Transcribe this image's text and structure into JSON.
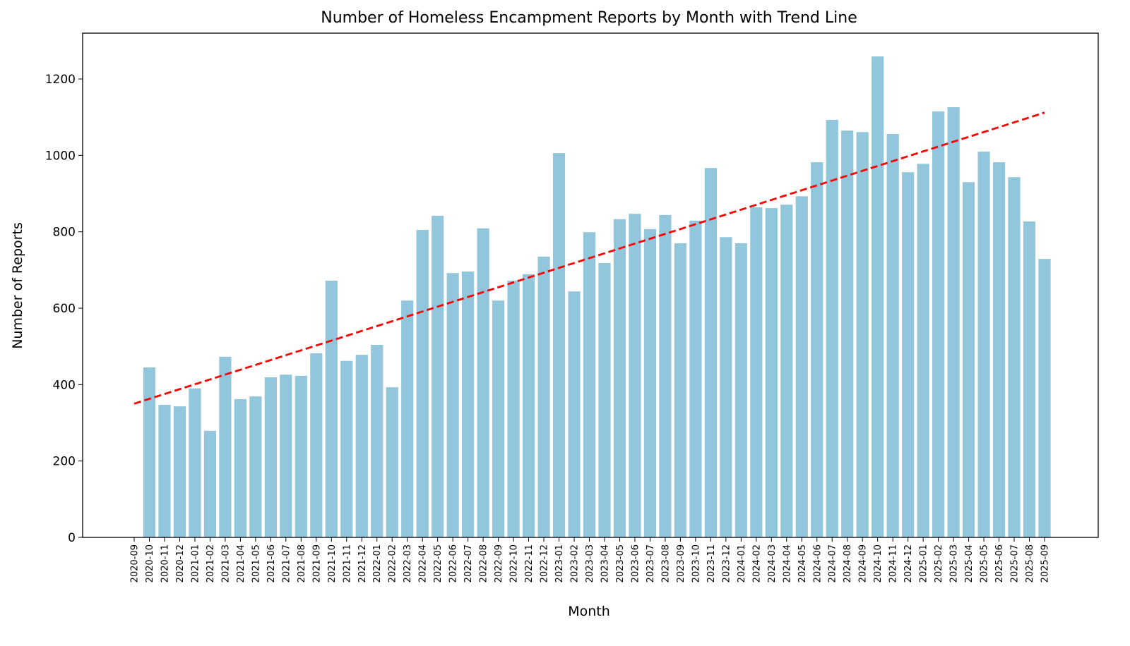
{
  "chart_data": {
    "type": "bar",
    "title": "Number of Homeless Encampment Reports by Month with Trend Line",
    "xlabel": "Month",
    "ylabel": "Number of Reports",
    "ylim": [
      0,
      1320
    ],
    "yticks": [
      0,
      200,
      400,
      600,
      800,
      1000,
      1200
    ],
    "grid": false,
    "categories": [
      "2020-09",
      "2020-10",
      "2020-11",
      "2020-12",
      "2021-01",
      "2021-02",
      "2021-03",
      "2021-04",
      "2021-05",
      "2021-06",
      "2021-07",
      "2021-08",
      "2021-09",
      "2021-10",
      "2021-11",
      "2021-12",
      "2022-01",
      "2022-02",
      "2022-03",
      "2022-04",
      "2022-05",
      "2022-06",
      "2022-07",
      "2022-08",
      "2022-09",
      "2022-10",
      "2022-11",
      "2022-12",
      "2023-01",
      "2023-02",
      "2023-03",
      "2023-04",
      "2023-05",
      "2023-06",
      "2023-07",
      "2023-08",
      "2023-09",
      "2023-10",
      "2023-11",
      "2023-12",
      "2024-01",
      "2024-02",
      "2024-03",
      "2024-04",
      "2024-05",
      "2024-06",
      "2024-07",
      "2024-08",
      "2024-09",
      "2024-10",
      "2024-11",
      "2024-12",
      "2025-01",
      "2025-02",
      "2025-03",
      "2025-04",
      "2025-05",
      "2025-06",
      "2025-07",
      "2025-08",
      "2025-09"
    ],
    "values": [
      0,
      445,
      347,
      343,
      390,
      279,
      473,
      362,
      369,
      419,
      426,
      423,
      482,
      672,
      462,
      478,
      504,
      393,
      620,
      805,
      842,
      692,
      696,
      809,
      620,
      672,
      689,
      735,
      1006,
      644,
      799,
      718,
      833,
      847,
      807,
      844,
      770,
      829,
      967,
      786,
      770,
      864,
      862,
      871,
      893,
      982,
      1093,
      1065,
      1061,
      1259,
      1056,
      956,
      978,
      1115,
      1126,
      930,
      1010,
      982,
      943,
      827,
      729
    ],
    "bar_color": "#92c6dc",
    "trend_line": {
      "start": 350,
      "end": 1112,
      "color": "#ff0000",
      "style": "dashed"
    }
  }
}
